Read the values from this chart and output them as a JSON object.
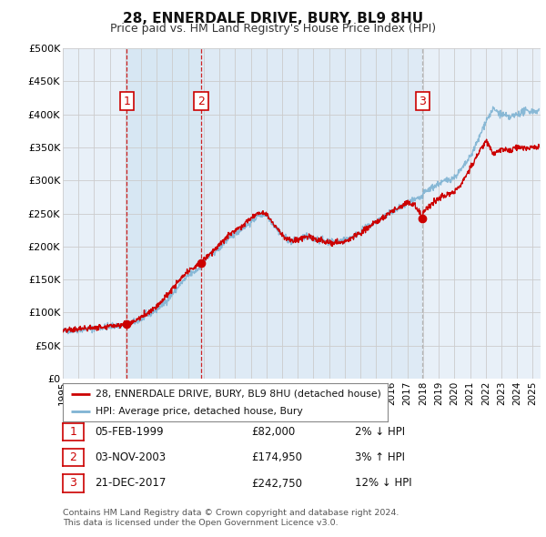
{
  "title_line1": "28, ENNERDALE DRIVE, BURY, BL9 8HU",
  "title_line2": "Price paid vs. HM Land Registry's House Price Index (HPI)",
  "ylim": [
    0,
    500000
  ],
  "yticks": [
    0,
    50000,
    100000,
    150000,
    200000,
    250000,
    300000,
    350000,
    400000,
    450000,
    500000
  ],
  "ytick_labels": [
    "£0",
    "£50K",
    "£100K",
    "£150K",
    "£200K",
    "£250K",
    "£300K",
    "£350K",
    "£400K",
    "£450K",
    "£500K"
  ],
  "sale_color": "#cc0000",
  "hpi_color": "#7fb3d3",
  "vline_color_red": "#cc0000",
  "vline_color_grey": "#aaaaaa",
  "grid_color": "#cccccc",
  "bg_color": "#deeaf5",
  "plot_bg": "#e8f0f8",
  "sales": [
    {
      "date_num": 1999.09,
      "price": 82000,
      "label": "1",
      "vline_style": "red"
    },
    {
      "date_num": 2003.84,
      "price": 174950,
      "label": "2",
      "vline_style": "red"
    },
    {
      "date_num": 2017.97,
      "price": 242750,
      "label": "3",
      "vline_style": "grey"
    }
  ],
  "table_rows": [
    {
      "num": "1",
      "date": "05-FEB-1999",
      "price": "£82,000",
      "hpi": "2% ↓ HPI"
    },
    {
      "num": "2",
      "date": "03-NOV-2003",
      "price": "£174,950",
      "hpi": "3% ↑ HPI"
    },
    {
      "num": "3",
      "date": "21-DEC-2017",
      "price": "£242,750",
      "hpi": "12% ↓ HPI"
    }
  ],
  "legend_entry1": "28, ENNERDALE DRIVE, BURY, BL9 8HU (detached house)",
  "legend_entry2": "HPI: Average price, detached house, Bury",
  "footnote": "Contains HM Land Registry data © Crown copyright and database right 2024.\nThis data is licensed under the Open Government Licence v3.0.",
  "xmin": 1995.0,
  "xmax": 2025.5
}
